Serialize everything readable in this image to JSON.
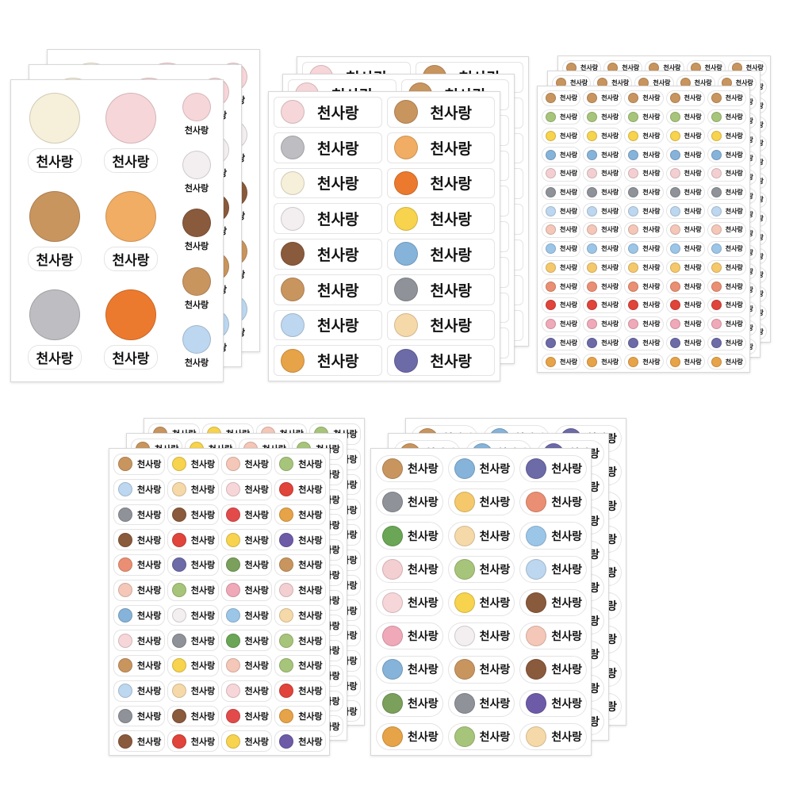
{
  "label": "천사랑",
  "icon_colors": {
    "sheep": "#f6efd9",
    "rabbit": "#f7d6d9",
    "bear": "#c9955f",
    "cat": "#f0ad63",
    "wolf": "#bdbdc2",
    "fox": "#ec7a2e",
    "mouse": "#f3eef0",
    "beaver": "#8a5a3c",
    "ghost": "#bcd7ef",
    "chick": "#f7d34e",
    "dolphin": "#86b3d9",
    "penguin": "#8f9399",
    "cake": "#f6d9a8",
    "pudding": "#e7a347",
    "muffin": "#6d6aa8",
    "frog": "#a7c57a",
    "pig": "#f4cfd2",
    "paw": "#f4c7b8",
    "rainbow": "#9cc6e8",
    "cloud-sun": "#f5c96b",
    "flower": "#ea8f73",
    "apple": "#e0443a",
    "cupcake": "#f0a9b8",
    "lollipop": "#e34b4b",
    "grapes": "#6e5ba8",
    "cactus": "#7ba05b",
    "clover": "#6aa655"
  },
  "sheets": [
    {
      "name": "large-character-sheet",
      "big": [
        "sheep",
        "rabbit",
        "bear",
        "cat",
        "wolf",
        "fox"
      ],
      "small": [
        "rabbit",
        "mouse",
        "beaver",
        "bear",
        "ghost"
      ]
    },
    {
      "name": "rectangle-label-sheet",
      "icons": [
        "rabbit",
        "bear",
        "wolf",
        "cat",
        "sheep",
        "fox",
        "mouse",
        "chick",
        "beaver",
        "dolphin",
        "bear",
        "penguin",
        "ghost",
        "cake",
        "pudding",
        "muffin"
      ]
    },
    {
      "name": "tiny-label-sheet",
      "rows": [
        "bear",
        "frog",
        "chick",
        "dolphin",
        "pig",
        "penguin",
        "ghost",
        "paw",
        "rainbow",
        "cloud-sun",
        "flower",
        "apple",
        "cupcake",
        "muffin",
        "pudding"
      ]
    },
    {
      "name": "small-label-sheet",
      "icons": [
        "bear",
        "chick",
        "paw",
        "frog",
        "ghost",
        "cake",
        "rabbit",
        "apple",
        "penguin",
        "beaver",
        "lollipop",
        "pudding",
        "beaver",
        "apple",
        "chick",
        "grapes",
        "flower",
        "muffin",
        "cactus",
        "bear",
        "paw",
        "frog",
        "cupcake",
        "pig",
        "dolphin",
        "mouse",
        "rainbow",
        "cake",
        "rabbit",
        "penguin",
        "clover",
        "frog",
        "bear",
        "chick",
        "paw",
        "frog",
        "ghost",
        "cake",
        "rabbit",
        "apple",
        "penguin",
        "beaver",
        "lollipop",
        "pudding",
        "beaver",
        "apple",
        "chick",
        "grapes"
      ]
    },
    {
      "name": "pill-label-sheet",
      "icons": [
        "bear",
        "dolphin",
        "muffin",
        "penguin",
        "cloud-sun",
        "flower",
        "clover",
        "cake",
        "rainbow",
        "pig",
        "frog",
        "ghost",
        "rabbit",
        "chick",
        "beaver",
        "cupcake",
        "mouse",
        "paw",
        "dolphin",
        "bear",
        "beaver",
        "cactus",
        "penguin",
        "grapes",
        "pudding",
        "frog",
        "cake"
      ]
    }
  ]
}
